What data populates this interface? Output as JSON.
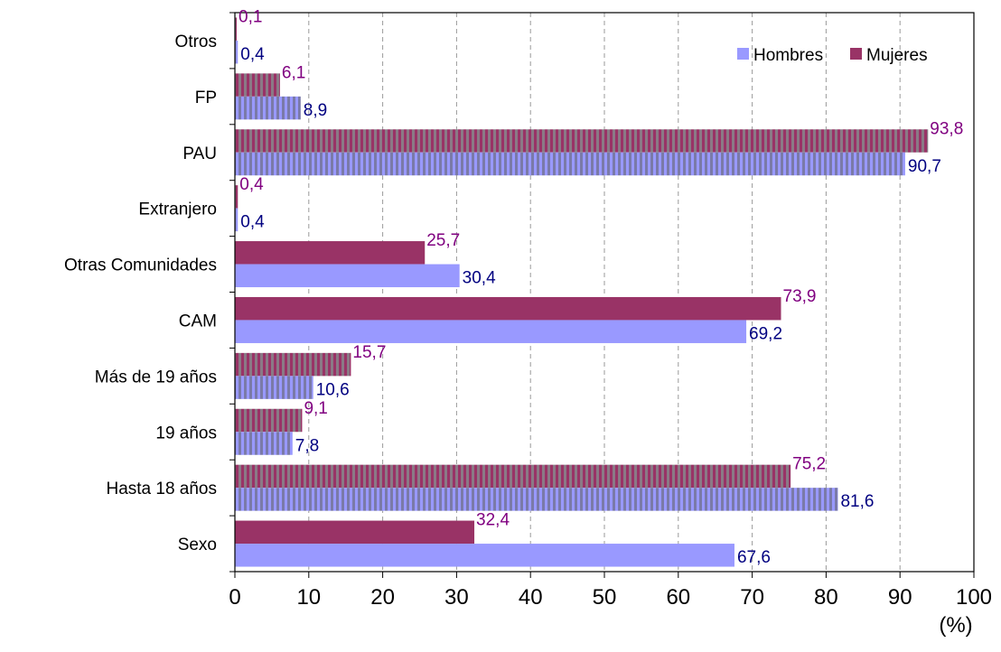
{
  "chart_data": {
    "type": "bar",
    "orientation": "horizontal",
    "categories": [
      "Otros",
      "FP",
      "PAU",
      "Extranjero",
      "Otras Comunidades",
      "CAM",
      "Más de 19 años",
      "19 años",
      "Hasta 18 años",
      "Sexo"
    ],
    "series": [
      {
        "name": "Hombres",
        "color": "#9999ff",
        "label_color": "#000080",
        "values": [
          0.4,
          8.9,
          90.7,
          0.4,
          30.4,
          69.2,
          10.6,
          7.8,
          81.6,
          67.6
        ],
        "labels": [
          "0,4",
          "8,9",
          "90,7",
          "0,4",
          "30,4",
          "69,2",
          "10,6",
          "7,8",
          "81,6",
          "67,6"
        ]
      },
      {
        "name": "Mujeres",
        "color": "#993366",
        "label_color": "#800080",
        "values": [
          0.1,
          6.1,
          93.8,
          0.4,
          25.7,
          73.9,
          15.7,
          9.1,
          75.2,
          32.4
        ],
        "labels": [
          "0,1",
          "6,1",
          "93,8",
          "0,4",
          "25,7",
          "73,9",
          "15,7",
          "9,1",
          "75,2",
          "32,4"
        ]
      }
    ],
    "striped_categories": [
      "Otros",
      "FP",
      "PAU",
      "Extranjero",
      "Más de 19 años",
      "19 años",
      "Hasta 18 años"
    ],
    "xlim": [
      0,
      100
    ],
    "xticks": [
      0,
      10,
      20,
      30,
      40,
      50,
      60,
      70,
      80,
      90,
      100
    ],
    "xunit": "(%)",
    "grid": "vertical-dashed",
    "legend_position": "top-right"
  }
}
